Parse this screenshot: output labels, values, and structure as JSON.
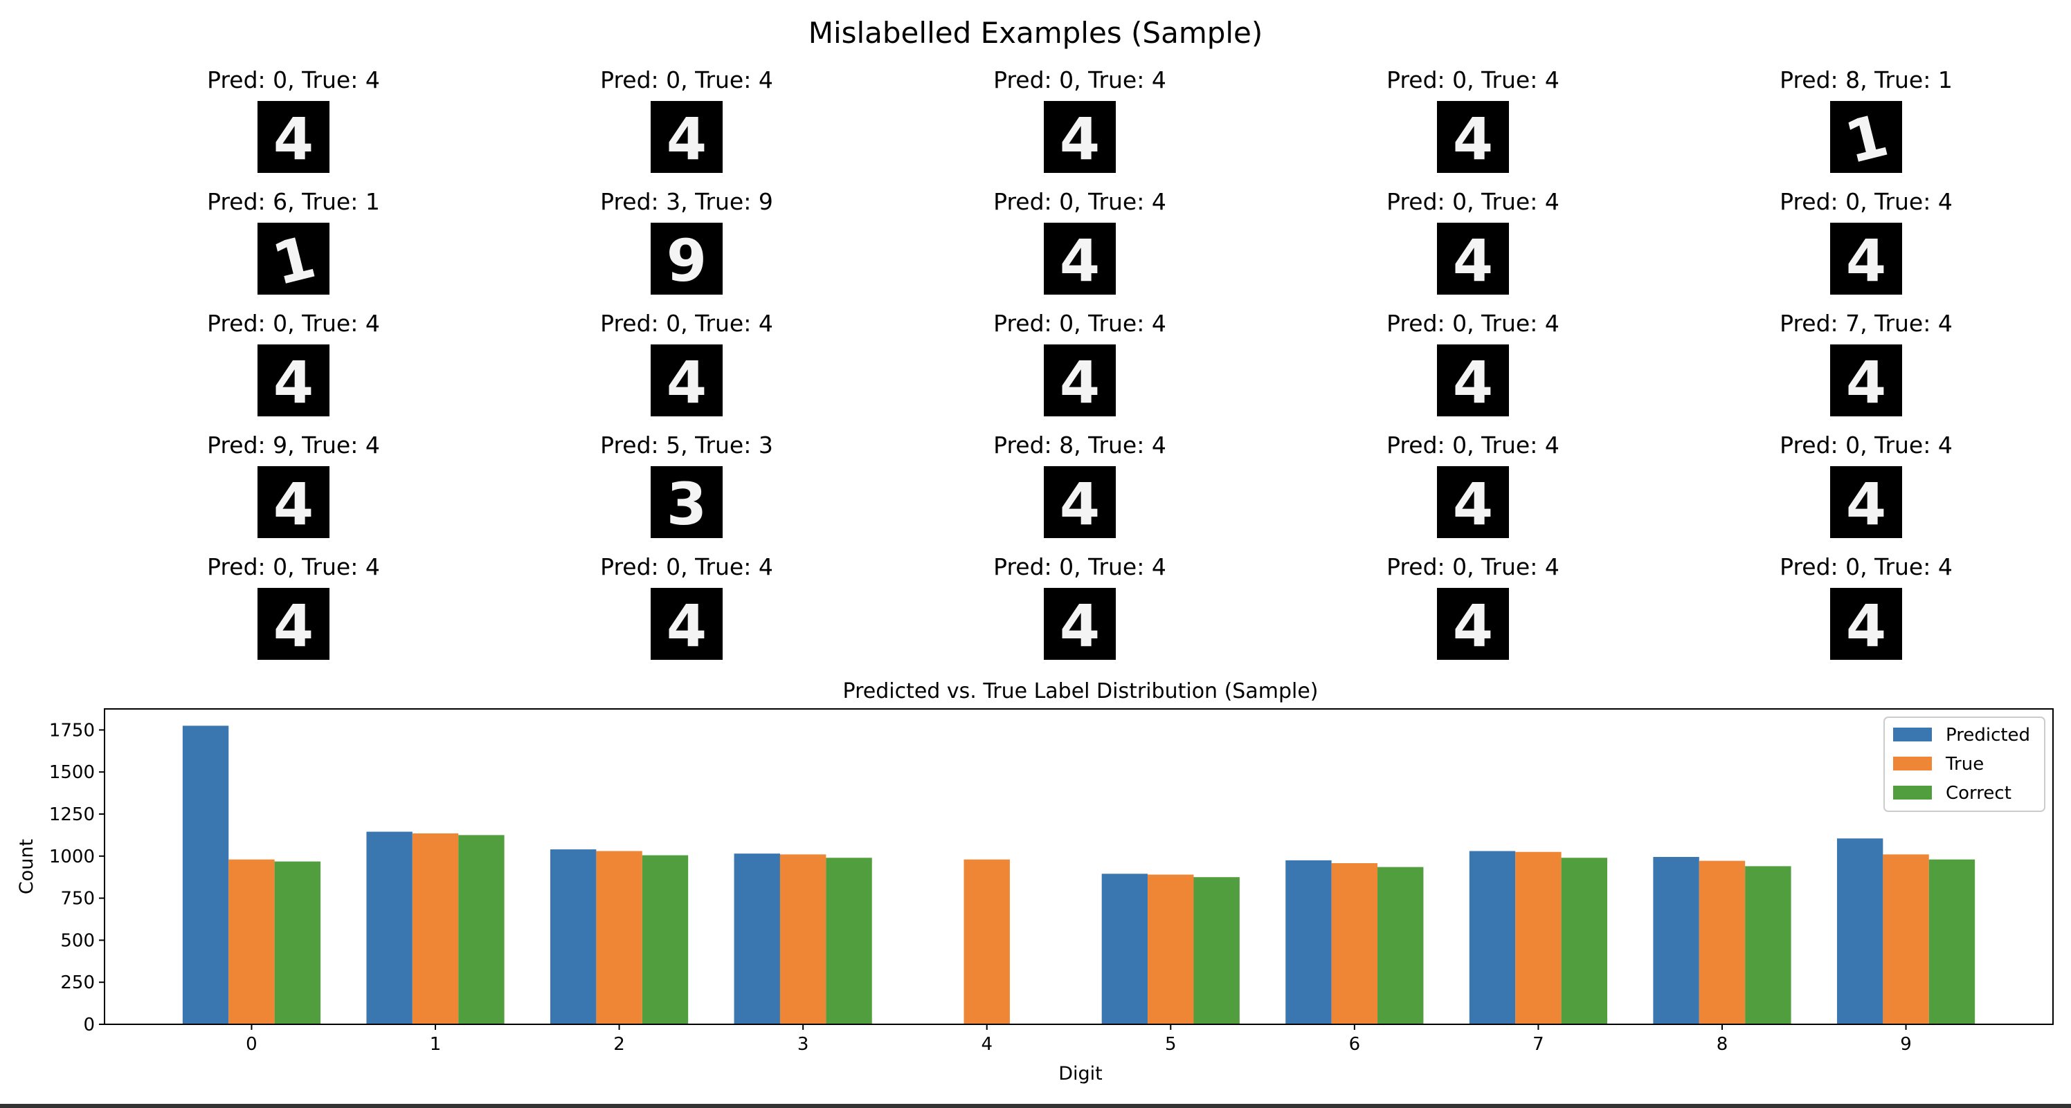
{
  "figure": {
    "title": "Mislabelled Examples (Sample)"
  },
  "samples": [
    {
      "label": "Pred: 0, True: 4",
      "image": "digit-4"
    },
    {
      "label": "Pred: 0, True: 4",
      "image": "digit-4"
    },
    {
      "label": "Pred: 0, True: 4",
      "image": "digit-4"
    },
    {
      "label": "Pred: 0, True: 4",
      "image": "digit-4"
    },
    {
      "label": "Pred: 8, True: 1",
      "image": "digit-1"
    },
    {
      "label": "Pred: 6, True: 1",
      "image": "digit-1"
    },
    {
      "label": "Pred: 3, True: 9",
      "image": "digit-9"
    },
    {
      "label": "Pred: 0, True: 4",
      "image": "digit-4"
    },
    {
      "label": "Pred: 0, True: 4",
      "image": "digit-4"
    },
    {
      "label": "Pred: 0, True: 4",
      "image": "digit-4"
    },
    {
      "label": "Pred: 0, True: 4",
      "image": "digit-4"
    },
    {
      "label": "Pred: 0, True: 4",
      "image": "digit-4"
    },
    {
      "label": "Pred: 0, True: 4",
      "image": "digit-4"
    },
    {
      "label": "Pred: 0, True: 4",
      "image": "digit-4"
    },
    {
      "label": "Pred: 7, True: 4",
      "image": "digit-4"
    },
    {
      "label": "Pred: 9, True: 4",
      "image": "digit-4"
    },
    {
      "label": "Pred: 5, True: 3",
      "image": "digit-3"
    },
    {
      "label": "Pred: 8, True: 4",
      "image": "digit-4"
    },
    {
      "label": "Pred: 0, True: 4",
      "image": "digit-4"
    },
    {
      "label": "Pred: 0, True: 4",
      "image": "digit-4"
    },
    {
      "label": "Pred: 0, True: 4",
      "image": "digit-4"
    },
    {
      "label": "Pred: 0, True: 4",
      "image": "digit-4"
    },
    {
      "label": "Pred: 0, True: 4",
      "image": "digit-4"
    },
    {
      "label": "Pred: 0, True: 4",
      "image": "digit-4"
    },
    {
      "label": "Pred: 0, True: 4",
      "image": "digit-4"
    }
  ],
  "chart_data": {
    "type": "bar",
    "title": "Predicted vs. True Label Distribution (Sample)",
    "xlabel": "Digit",
    "ylabel": "Count",
    "categories": [
      "0",
      "1",
      "2",
      "3",
      "4",
      "5",
      "6",
      "7",
      "8",
      "9"
    ],
    "series": [
      {
        "name": "Predicted",
        "color": "#3a76af",
        "values": [
          1775,
          1145,
          1040,
          1015,
          0,
          895,
          975,
          1030,
          995,
          1105
        ]
      },
      {
        "name": "True",
        "color": "#ef8636",
        "values": [
          980,
          1135,
          1030,
          1010,
          980,
          890,
          958,
          1025,
          972,
          1010
        ]
      },
      {
        "name": "Correct",
        "color": "#519e3e",
        "values": [
          968,
          1125,
          1005,
          990,
          0,
          875,
          935,
          990,
          940,
          980
        ]
      }
    ],
    "ylim": [
      0,
      1875
    ],
    "yticks": [
      0,
      250,
      500,
      750,
      1000,
      1250,
      1500,
      1750
    ],
    "legend_position": "top-right",
    "grid": false
  }
}
